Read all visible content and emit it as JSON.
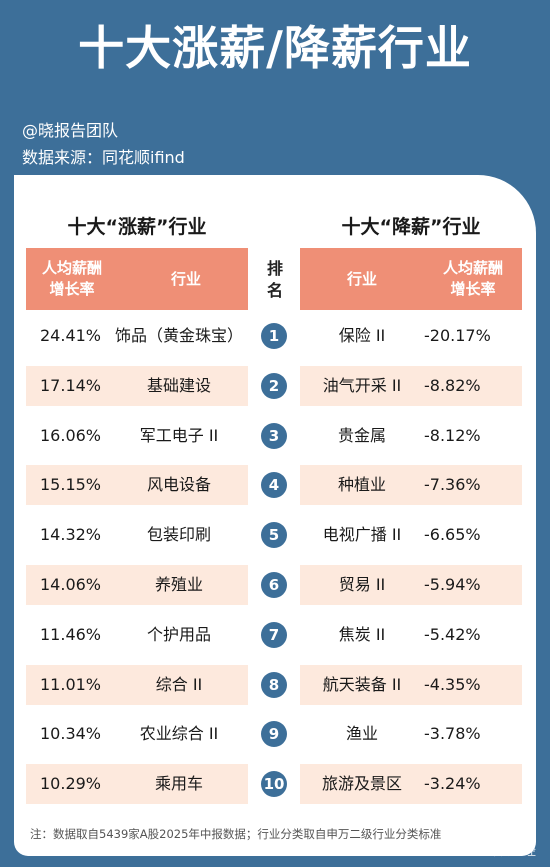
{
  "title": "十大涨薪/降薪行业",
  "author": "@晓报告团队",
  "source": "数据来源：同花顺ifind",
  "left_section_title": "十大“涨薪”行业",
  "right_section_title": "十大“降薪”行业",
  "headers": {
    "growth_line1": "人均薪酬",
    "growth_line2": "增长率",
    "industry": "行业",
    "rank_line1": "排",
    "rank_line2": "名"
  },
  "rows": [
    {
      "rank": "1",
      "left_value": "24.41%",
      "left_industry": "饰品（黄金珠宝）",
      "right_industry": "保险 II",
      "right_value": "-20.17%"
    },
    {
      "rank": "2",
      "left_value": "17.14%",
      "left_industry": "基础建设",
      "right_industry": "油气开采 II",
      "right_value": "-8.82%"
    },
    {
      "rank": "3",
      "left_value": "16.06%",
      "left_industry": "军工电子 II",
      "right_industry": "贵金属",
      "right_value": "-8.12%"
    },
    {
      "rank": "4",
      "left_value": "15.15%",
      "left_industry": "风电设备",
      "right_industry": "种植业",
      "right_value": "-7.36%"
    },
    {
      "rank": "5",
      "left_value": "14.32%",
      "left_industry": "包装印刷",
      "right_industry": "电视广播 II",
      "right_value": "-6.65%"
    },
    {
      "rank": "6",
      "left_value": "14.06%",
      "left_industry": "养殖业",
      "right_industry": "贸易 II",
      "right_value": "-5.94%"
    },
    {
      "rank": "7",
      "left_value": "11.46%",
      "left_industry": "个护用品",
      "right_industry": "焦炭 II",
      "right_value": "-5.42%"
    },
    {
      "rank": "8",
      "left_value": "11.01%",
      "left_industry": "综合 II",
      "right_industry": "航天装备 II",
      "right_value": "-4.35%"
    },
    {
      "rank": "9",
      "left_value": "10.34%",
      "left_industry": "农业综合 II",
      "right_industry": "渔业",
      "right_value": "-3.78%"
    },
    {
      "rank": "10",
      "left_value": "10.29%",
      "left_industry": "乘用车",
      "right_industry": "旅游及景区",
      "right_value": "-3.24%"
    }
  ],
  "footnote": "注：数据取自5439家A股2025年中报数据；行业分类取自申万二级行业分类标准",
  "watermark": "新浪财经",
  "colors": {
    "background": "#3d6f99",
    "header": "#ef8f76",
    "stripe": "#fde9dd",
    "rank_circle": "#3d6f99"
  }
}
